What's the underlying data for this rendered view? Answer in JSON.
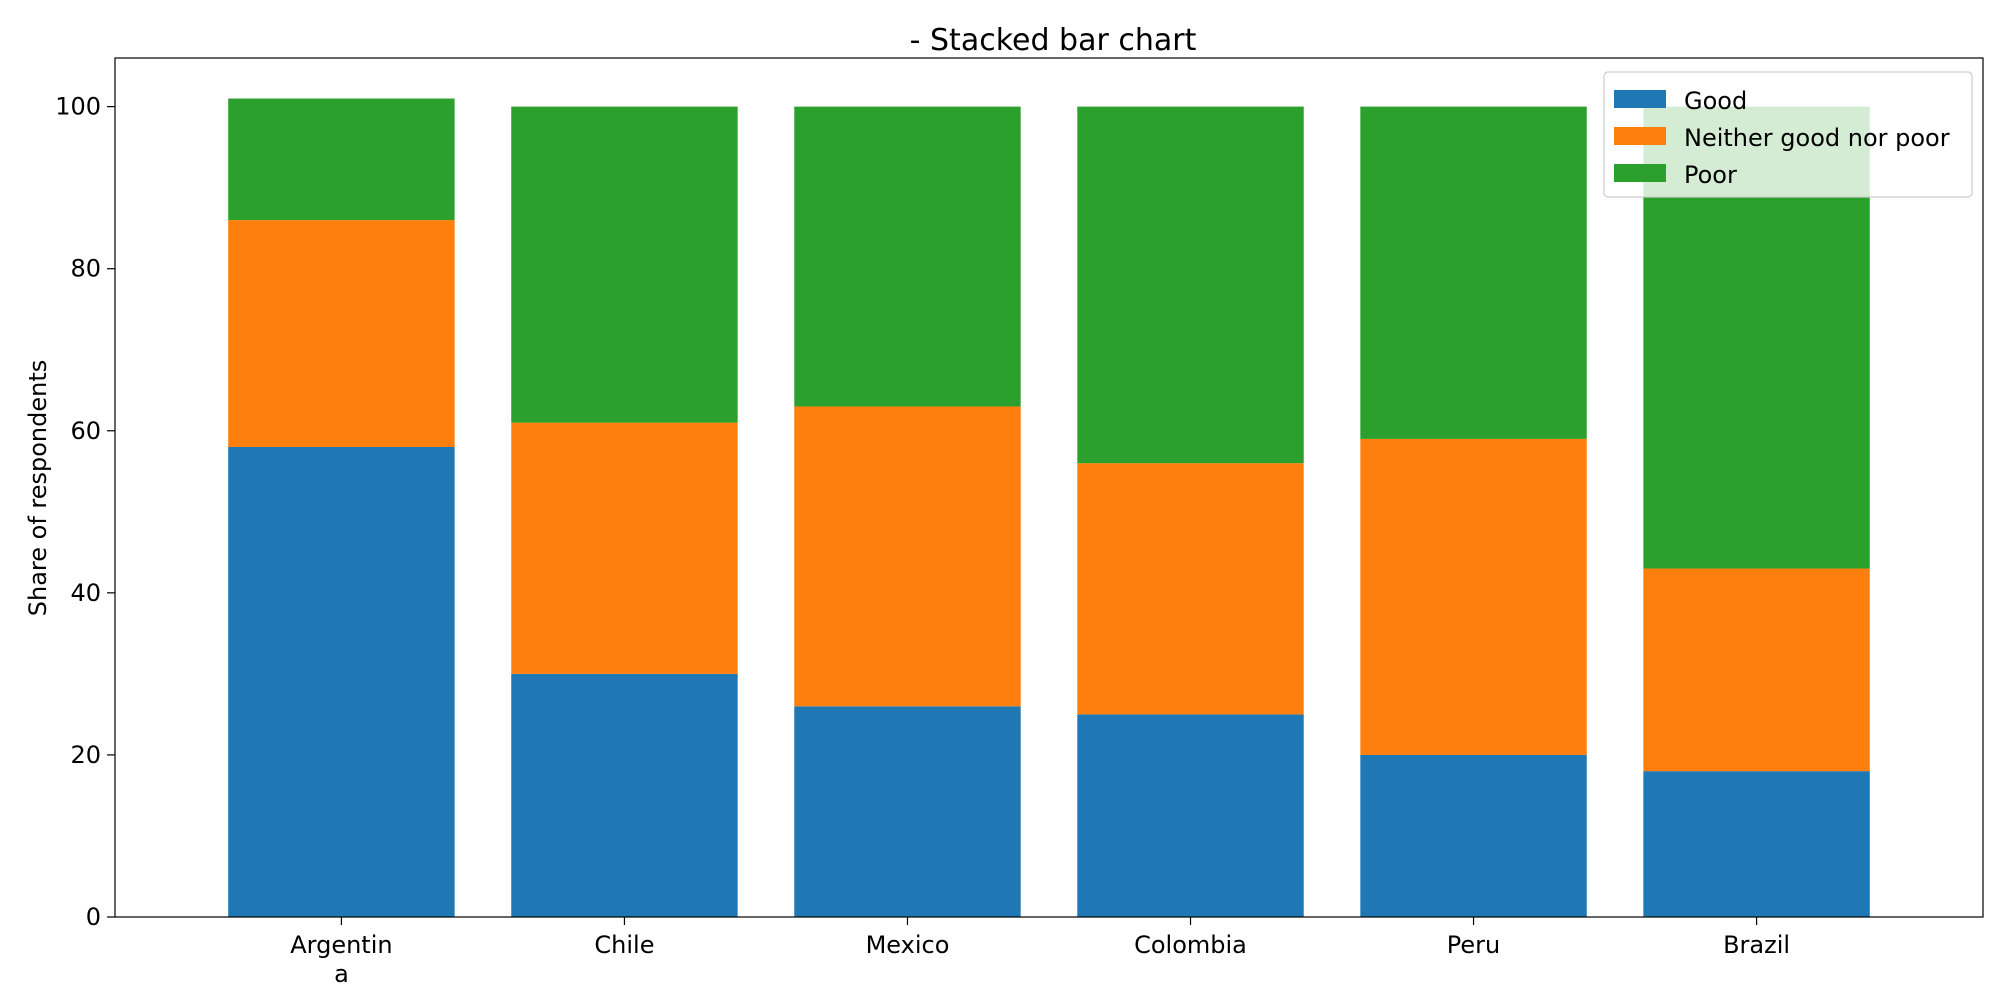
{
  "chart_data": {
    "type": "bar",
    "stacked": true,
    "title": "- Stacked bar chart",
    "xlabel": "",
    "ylabel": "Share of respondents",
    "ylim": [
      0,
      106
    ],
    "yticks": [
      0,
      20,
      40,
      60,
      80,
      100
    ],
    "grid": false,
    "legend_position": "top-right",
    "categories": [
      [
        "Argentin",
        "a"
      ],
      [
        "Chile"
      ],
      [
        "Mexico"
      ],
      [
        "Colombia"
      ],
      [
        "Peru"
      ],
      [
        "Brazil"
      ]
    ],
    "series": [
      {
        "name": "Good",
        "color": "#1f77b4",
        "values": [
          58,
          30,
          26,
          25,
          20,
          18
        ]
      },
      {
        "name": "Neither good nor poor",
        "color": "#ff7f0e",
        "values": [
          28,
          31,
          37,
          31,
          39,
          25
        ]
      },
      {
        "name": "Poor",
        "color": "#2ca02c",
        "values": [
          15,
          39,
          37,
          44,
          41,
          57
        ]
      }
    ]
  }
}
